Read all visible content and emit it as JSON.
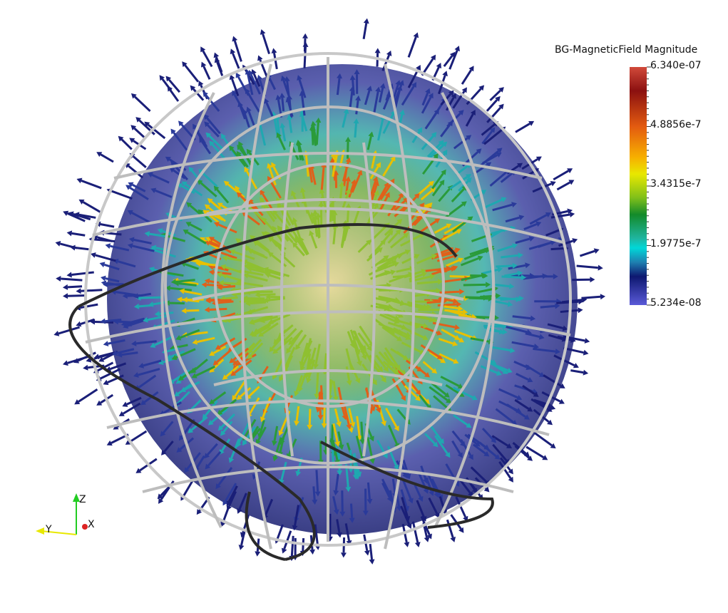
{
  "scene": {
    "legend": {
      "title": "BG-MagneticField Magnitude",
      "ticks": [
        "6.340e-07",
        "4.8856e-7",
        "3.4315e-7",
        "1.9775e-7",
        "5.234e-08"
      ],
      "colormap": [
        "#d14a3a",
        "#8b1010",
        "#e35b10",
        "#f7b000",
        "#e8e800",
        "#7fbf1a",
        "#138a2a",
        "#1fb5a0",
        "#00d8d8",
        "#1e80b0",
        "#0e1870",
        "#3a3aa8",
        "#5a5ad8"
      ],
      "range": [
        5.234e-08,
        6.34e-07
      ]
    },
    "orientation_axes": {
      "z_label": "Z",
      "y_label": "Y",
      "x_label": "X",
      "z_color": "#22cc22",
      "y_color": "#e8e800",
      "x_color": "#dd2222"
    },
    "render": {
      "outer_shell_color": "#3e43a0",
      "wireframe_color": "#c8c8c8",
      "high_field_color": "#c0301a",
      "mid_field_color": "#6cc030",
      "low_field_color": "#181c78"
    }
  }
}
